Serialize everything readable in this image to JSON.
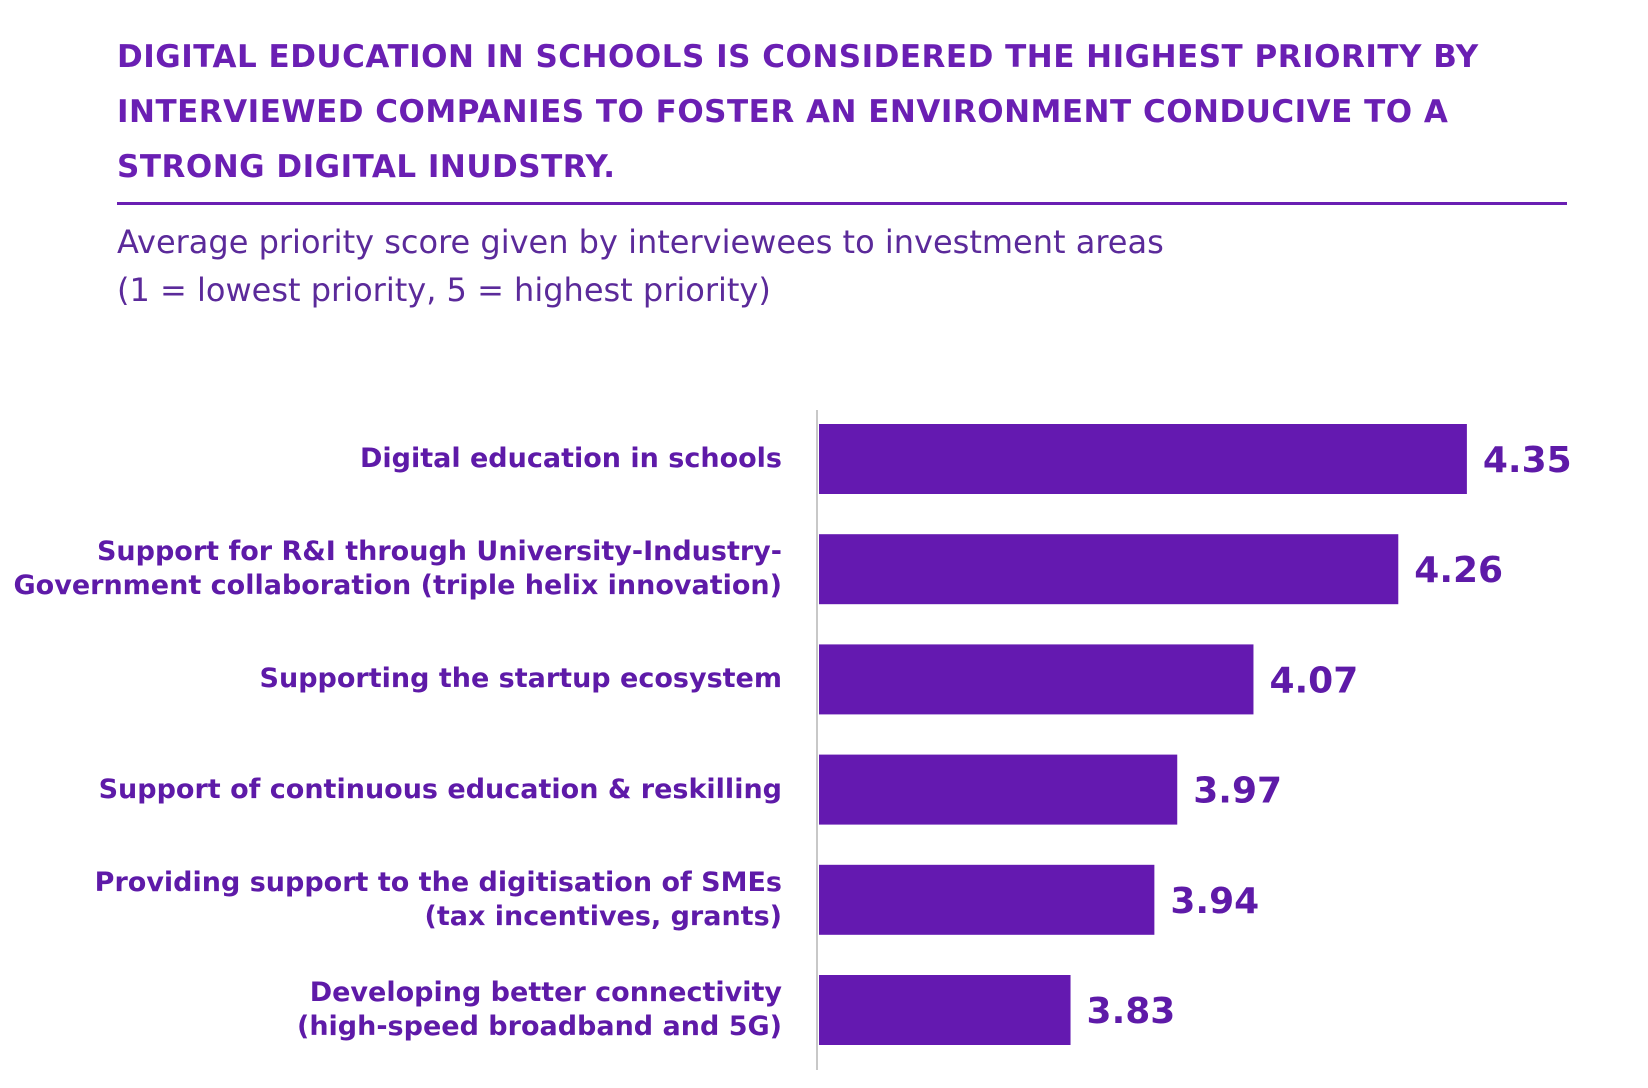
{
  "chart_data": {
    "type": "bar",
    "orientation": "horizontal",
    "title": "DIGITAL EDUCATION IN SCHOOLS IS CONSIDERED THE HIGHEST PRIORITY BY INTERVIEWED COMPANIES TO FOSTER AN ENVIRONMENT CONDUCIVE TO A STRONG DIGITAL INUDSTRY.",
    "subtitle": "Average priority score given by interviewees to investment areas\n(1 = lowest priority, 5 = highest priority)",
    "categories": [
      "Digital education in schools",
      "Support for R&I through University-Industry-\nGovernment collaboration (triple helix innovation)",
      "Supporting the startup ecosystem",
      "Support of continuous education & reskilling",
      "Providing support to the digitisation of SMEs\n(tax incentives, grants)",
      "Developing better connectivity\n(high-speed broadband and 5G)"
    ],
    "values": [
      4.35,
      4.26,
      4.07,
      3.97,
      3.94,
      3.83
    ],
    "color": "#6419b0",
    "xlim": [
      3.5,
      4.4
    ]
  }
}
